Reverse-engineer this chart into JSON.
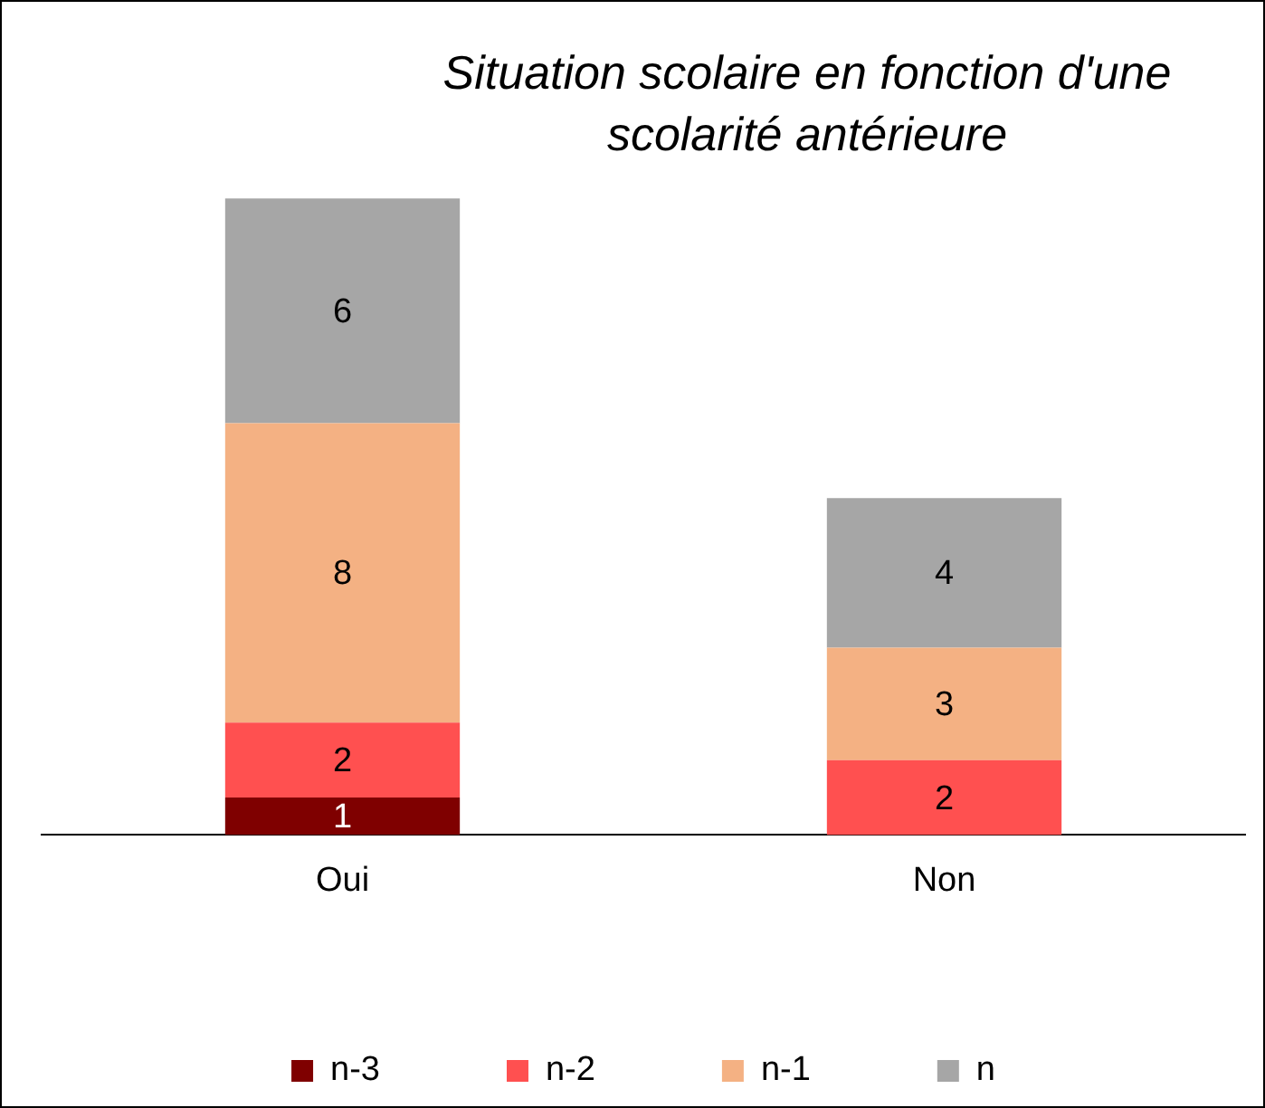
{
  "chart_data": {
    "type": "bar",
    "title": "Situation scolaire en fonction d'une scolarité antérieure",
    "categories": [
      "Oui",
      "Non"
    ],
    "stacked": true,
    "data_labels": true,
    "legend": "bottom",
    "grid": false,
    "series": [
      {
        "name": "n-3",
        "color": "#7f0000",
        "values": [
          1,
          null
        ]
      },
      {
        "name": "n-2",
        "color": "#ff5050",
        "values": [
          2,
          2
        ]
      },
      {
        "name": "n-1",
        "color": "#f4b183",
        "values": [
          8,
          3
        ]
      },
      {
        "name": "n",
        "color": "#a6a6a6",
        "values": [
          6,
          4
        ]
      }
    ]
  }
}
